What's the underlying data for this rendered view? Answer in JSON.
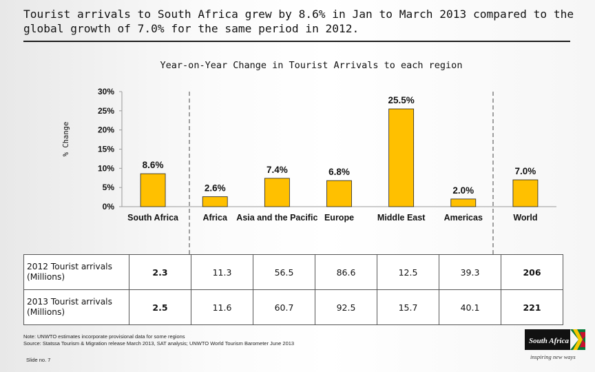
{
  "headline": "Tourist arrivals to South Africa grew by 8.6% in Jan to March 2013 compared to the global growth of 7.0% for the same period in 2012.",
  "chart_data": {
    "type": "bar",
    "title": "Year-on-Year Change in Tourist Arrivals to each region",
    "ylabel": "% Change",
    "xlabel": "",
    "categories": [
      "South Africa",
      "Africa",
      "Asia and the Pacific",
      "Europe",
      "Middle East",
      "Americas",
      "World"
    ],
    "values": [
      8.6,
      2.6,
      7.4,
      6.8,
      25.5,
      2.0,
      7.0
    ],
    "data_labels": [
      "8.6%",
      "2.6%",
      "7.4%",
      "6.8%",
      "25.5%",
      "2.0%",
      "7.0%"
    ],
    "ylim": [
      0,
      30
    ],
    "yticks": [
      0,
      5,
      10,
      15,
      20,
      25,
      30
    ],
    "ytick_labels": [
      "0%",
      "5%",
      "10%",
      "15%",
      "20%",
      "25%",
      "30%"
    ],
    "bar_color": "#ffc000",
    "grid": false,
    "legend": "none"
  },
  "table": {
    "rows": [
      {
        "label": "2012 Tourist arrivals (Millions)",
        "values": [
          "2.3",
          "11.3",
          "56.5",
          "86.6",
          "12.5",
          "39.3",
          "206"
        ]
      },
      {
        "label": "2013 Tourist arrivals (Millions)",
        "values": [
          "2.5",
          "11.6",
          "60.7",
          "92.5",
          "15.7",
          "40.1",
          "221"
        ]
      }
    ]
  },
  "notes": {
    "line1": "Note: UNWTO estimates incorporate provisional data for some regions",
    "line2": "Source: Statssa Tourism & Migration release March 2013, SAT analysis; UNWTO World Tourism Barometer June 2013"
  },
  "slide_no": "Slide no. 7",
  "logo": {
    "name": "South Africa",
    "tagline": "inspiring new ways"
  }
}
